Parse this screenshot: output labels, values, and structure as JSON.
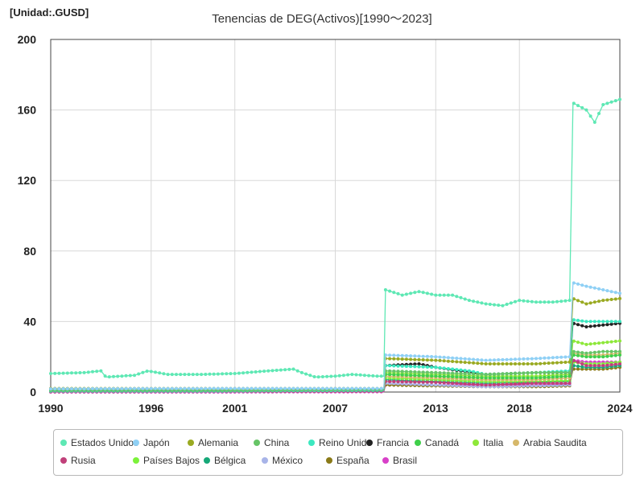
{
  "unit_label": "[Unidad:.GUSD]",
  "chart_data": {
    "type": "line",
    "title": "Tenencias de DEG(Activos)[1990～2023]",
    "xlabel": "",
    "ylabel": "",
    "xlim": [
      1990,
      2024
    ],
    "ylim": [
      0,
      200
    ],
    "x_ticks": [
      "1990",
      "1996",
      "2001",
      "2007",
      "2013",
      "2018",
      "2024"
    ],
    "x_tick_values": [
      1990,
      1996,
      2001,
      2007,
      2013,
      2018,
      2024
    ],
    "y_ticks": [
      "0",
      "40",
      "80",
      "120",
      "160",
      "200"
    ],
    "y_tick_values": [
      0,
      40,
      80,
      120,
      160,
      200
    ],
    "grid": true,
    "legend_position": "bottom",
    "series": [
      {
        "name": "Estados Unidos",
        "color": "#5ee8b4",
        "points": [
          [
            1990,
            10.5
          ],
          [
            1992,
            11
          ],
          [
            1993,
            12
          ],
          [
            1993.3,
            8.5
          ],
          [
            1995,
            9.5
          ],
          [
            1995.8,
            12
          ],
          [
            1997,
            10
          ],
          [
            1999,
            10
          ],
          [
            2001,
            10.5
          ],
          [
            2003,
            12
          ],
          [
            2004.5,
            13
          ],
          [
            2005,
            11
          ],
          [
            2005.8,
            8.5
          ],
          [
            2007,
            9
          ],
          [
            2008,
            10
          ],
          [
            2009.5,
            9
          ],
          [
            2009.9,
            9
          ],
          [
            2010,
            58
          ],
          [
            2011,
            55
          ],
          [
            2012,
            57
          ],
          [
            2013,
            55
          ],
          [
            2014,
            55
          ],
          [
            2015,
            52
          ],
          [
            2016,
            50
          ],
          [
            2017,
            49
          ],
          [
            2018,
            52
          ],
          [
            2019,
            51
          ],
          [
            2020,
            51
          ],
          [
            2021,
            52
          ],
          [
            2021.2,
            164
          ],
          [
            2022,
            160
          ],
          [
            2022.5,
            153
          ],
          [
            2023,
            163
          ],
          [
            2024,
            166
          ]
        ]
      },
      {
        "name": "Japón",
        "color": "#8fd0f5",
        "points": [
          [
            1990,
            1.8
          ],
          [
            2000,
            2
          ],
          [
            2009.9,
            2
          ],
          [
            2010,
            21
          ],
          [
            2013,
            20
          ],
          [
            2016,
            18
          ],
          [
            2019,
            19
          ],
          [
            2021,
            20
          ],
          [
            2021.2,
            62
          ],
          [
            2022,
            60
          ],
          [
            2023,
            58
          ],
          [
            2024,
            56
          ]
        ]
      },
      {
        "name": "Alemania",
        "color": "#9aaa22",
        "points": [
          [
            1990,
            2
          ],
          [
            2000,
            2
          ],
          [
            2009.9,
            2
          ],
          [
            2010,
            19
          ],
          [
            2013,
            18
          ],
          [
            2016,
            16
          ],
          [
            2019,
            16
          ],
          [
            2021,
            17
          ],
          [
            2021.2,
            53
          ],
          [
            2022,
            50
          ],
          [
            2023,
            52
          ],
          [
            2024,
            53
          ]
        ]
      },
      {
        "name": "China",
        "color": "#66c466",
        "points": [
          [
            1990,
            1
          ],
          [
            2000,
            1
          ],
          [
            2009.9,
            1.5
          ],
          [
            2010,
            12
          ],
          [
            2013,
            11
          ],
          [
            2016,
            10
          ],
          [
            2019,
            11
          ],
          [
            2021,
            11
          ],
          [
            2021.2,
            23
          ],
          [
            2022,
            22
          ],
          [
            2023,
            23
          ],
          [
            2024,
            23
          ]
        ]
      },
      {
        "name": "Reino Unido",
        "color": "#3ce8c0",
        "points": [
          [
            1990,
            0.6
          ],
          [
            2000,
            0.6
          ],
          [
            2009.9,
            1
          ],
          [
            2010,
            15
          ],
          [
            2013,
            14
          ],
          [
            2015,
            12
          ],
          [
            2016,
            10
          ],
          [
            2019,
            11
          ],
          [
            2021,
            12
          ],
          [
            2021.2,
            41
          ],
          [
            2022,
            40
          ],
          [
            2023,
            40
          ],
          [
            2024,
            40
          ]
        ]
      },
      {
        "name": "Francia",
        "color": "#222222",
        "points": [
          [
            1990,
            1
          ],
          [
            2000,
            1
          ],
          [
            2009.9,
            1
          ],
          [
            2010,
            15
          ],
          [
            2012,
            16
          ],
          [
            2013,
            14
          ],
          [
            2016,
            10
          ],
          [
            2019,
            11
          ],
          [
            2021,
            11
          ],
          [
            2021.2,
            39
          ],
          [
            2022,
            37
          ],
          [
            2023,
            38
          ],
          [
            2024,
            39
          ]
        ]
      },
      {
        "name": "Canadá",
        "color": "#3fcf4a",
        "points": [
          [
            1990,
            1
          ],
          [
            2000,
            1
          ],
          [
            2009.9,
            1
          ],
          [
            2010,
            10
          ],
          [
            2013,
            9
          ],
          [
            2016,
            8
          ],
          [
            2019,
            8
          ],
          [
            2021,
            9
          ],
          [
            2021.2,
            21
          ],
          [
            2022,
            20
          ],
          [
            2023,
            20
          ],
          [
            2024,
            21
          ]
        ]
      },
      {
        "name": "Italia",
        "color": "#8ee83a",
        "points": [
          [
            1990,
            1.2
          ],
          [
            2000,
            1.2
          ],
          [
            2009.9,
            1.2
          ],
          [
            2010,
            11
          ],
          [
            2013,
            10
          ],
          [
            2016,
            9
          ],
          [
            2019,
            9
          ],
          [
            2021,
            10
          ],
          [
            2021.2,
            29
          ],
          [
            2022,
            27
          ],
          [
            2023,
            28
          ],
          [
            2024,
            29
          ]
        ]
      },
      {
        "name": "Arabia Saudita",
        "color": "#d6b86a",
        "points": [
          [
            1990,
            1
          ],
          [
            2000,
            1
          ],
          [
            2009.9,
            1
          ],
          [
            2010,
            9
          ],
          [
            2013,
            8
          ],
          [
            2016,
            7
          ],
          [
            2019,
            7
          ],
          [
            2021,
            8
          ],
          [
            2021.2,
            22
          ],
          [
            2022,
            21
          ],
          [
            2023,
            21
          ],
          [
            2024,
            22
          ]
        ]
      },
      {
        "name": "Rusia",
        "color": "#c0407a",
        "points": [
          [
            1990,
            0.2
          ],
          [
            2000,
            0.3
          ],
          [
            2009.9,
            0.5
          ],
          [
            2010,
            6
          ],
          [
            2013,
            5.5
          ],
          [
            2016,
            4
          ],
          [
            2019,
            5
          ],
          [
            2021,
            5
          ],
          [
            2021.2,
            18
          ],
          [
            2022,
            15
          ],
          [
            2023,
            15
          ],
          [
            2024,
            16
          ]
        ]
      },
      {
        "name": "Países Bajos",
        "color": "#7cf23a",
        "points": [
          [
            1990,
            0.8
          ],
          [
            2000,
            0.8
          ],
          [
            2009.9,
            1
          ],
          [
            2010,
            8
          ],
          [
            2013,
            7
          ],
          [
            2016,
            6
          ],
          [
            2019,
            6
          ],
          [
            2021,
            6.5
          ],
          [
            2021.2,
            17
          ],
          [
            2022,
            16
          ],
          [
            2023,
            16
          ],
          [
            2024,
            17
          ]
        ]
      },
      {
        "name": "Bélgica",
        "color": "#16a878",
        "points": [
          [
            1990,
            0.6
          ],
          [
            2000,
            0.6
          ],
          [
            2009.9,
            0.8
          ],
          [
            2010,
            7
          ],
          [
            2013,
            6
          ],
          [
            2016,
            5
          ],
          [
            2019,
            5.5
          ],
          [
            2021,
            6
          ],
          [
            2021.2,
            15
          ],
          [
            2022,
            14
          ],
          [
            2023,
            14
          ],
          [
            2024,
            15
          ]
        ]
      },
      {
        "name": "México",
        "color": "#a8b4e8",
        "points": [
          [
            1990,
            0.2
          ],
          [
            2000,
            0.3
          ],
          [
            2009.9,
            0.5
          ],
          [
            2010,
            5
          ],
          [
            2013,
            4
          ],
          [
            2016,
            3
          ],
          [
            2019,
            3.5
          ],
          [
            2021,
            4
          ],
          [
            2021.2,
            15
          ],
          [
            2022,
            14
          ],
          [
            2023,
            14
          ],
          [
            2024,
            15
          ]
        ]
      },
      {
        "name": "España",
        "color": "#8a7a18",
        "points": [
          [
            1990,
            0.3
          ],
          [
            2000,
            0.4
          ],
          [
            2009.9,
            0.5
          ],
          [
            2010,
            4
          ],
          [
            2013,
            3.5
          ],
          [
            2016,
            3
          ],
          [
            2019,
            3
          ],
          [
            2021,
            3.5
          ],
          [
            2021.2,
            13
          ],
          [
            2022,
            13
          ],
          [
            2023,
            13
          ],
          [
            2024,
            14
          ]
        ]
      },
      {
        "name": "Brasil",
        "color": "#d840c8",
        "points": [
          [
            1990,
            0
          ],
          [
            2000,
            0
          ],
          [
            2009.9,
            0.2
          ],
          [
            2010,
            4
          ],
          [
            2013,
            4
          ],
          [
            2016,
            4
          ],
          [
            2019,
            4
          ],
          [
            2021,
            4.5
          ],
          [
            2021.2,
            18
          ],
          [
            2022,
            17
          ],
          [
            2023,
            17
          ],
          [
            2024,
            17
          ]
        ]
      }
    ]
  }
}
